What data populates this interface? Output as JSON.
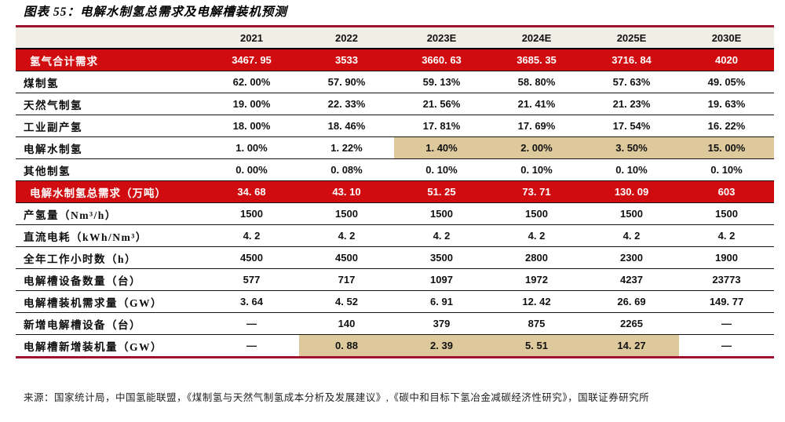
{
  "title": "图表 55：电解水制氢总需求及电解槽装机预测",
  "source": "来源：国家统计局，中国氢能联盟，《煤制氢与天然气制氢成本分析及发展建议》,《碳中和目标下氢冶金减碳经济性研究》，国联证券研究所",
  "colors": {
    "accent_red": "#d10c10",
    "border_maroon": "#9e1430",
    "header_bg": "#f1eee6",
    "highlight_tan": "#ddc99c",
    "row_line": "#141414"
  },
  "chart_data": {
    "type": "table",
    "title": "电解水制氢总需求及电解槽装机预测",
    "columns": [
      "",
      "2021",
      "2022",
      "2023E",
      "2024E",
      "2025E",
      "2030E"
    ],
    "rows": [
      {
        "label": "氢气合计需求",
        "type": "red",
        "values": [
          "3467. 95",
          "3533",
          "3660. 63",
          "3685. 35",
          "3716. 84",
          "4020"
        ]
      },
      {
        "label": "煤制氢",
        "type": "normal",
        "values": [
          "62. 00%",
          "57. 90%",
          "59. 13%",
          "58. 80%",
          "57. 63%",
          "49. 05%"
        ]
      },
      {
        "label": "天然气制氢",
        "type": "normal",
        "values": [
          "19. 00%",
          "22. 33%",
          "21. 56%",
          "21. 41%",
          "21. 23%",
          "19. 63%"
        ]
      },
      {
        "label": "工业副产氢",
        "type": "normal",
        "values": [
          "18. 00%",
          "18. 46%",
          "17. 81%",
          "17. 69%",
          "17. 54%",
          "16. 22%"
        ]
      },
      {
        "label": "电解水制氢",
        "type": "normal",
        "values": [
          "1. 00%",
          "1. 22%",
          "1. 40%",
          "2. 00%",
          "3. 50%",
          "15. 00%"
        ],
        "highlight": [
          2,
          3,
          4,
          5
        ]
      },
      {
        "label": "其他制氢",
        "type": "normal",
        "values": [
          "0. 00%",
          "0. 08%",
          "0. 10%",
          "0. 10%",
          "0. 10%",
          "0. 10%"
        ]
      },
      {
        "label": "电解水制氢总需求（万吨）",
        "type": "red",
        "values": [
          "34. 68",
          "43. 10",
          "51. 25",
          "73. 71",
          "130. 09",
          "603"
        ]
      },
      {
        "label": "产氢量（Nm³/h）",
        "type": "normal",
        "values": [
          "1500",
          "1500",
          "1500",
          "1500",
          "1500",
          "1500"
        ]
      },
      {
        "label": "直流电耗（kWh/Nm³）",
        "type": "normal",
        "values": [
          "4. 2",
          "4. 2",
          "4. 2",
          "4. 2",
          "4. 2",
          "4. 2"
        ]
      },
      {
        "label": "全年工作小时数（h）",
        "type": "normal",
        "values": [
          "4500",
          "4500",
          "3500",
          "2800",
          "2300",
          "1900"
        ]
      },
      {
        "label": "电解槽设备数量（台）",
        "type": "normal",
        "values": [
          "577",
          "717",
          "1097",
          "1972",
          "4237",
          "23773"
        ]
      },
      {
        "label": "电解槽装机需求量（GW）",
        "type": "normal",
        "values": [
          "3. 64",
          "4. 52",
          "6. 91",
          "12. 42",
          "26. 69",
          "149. 77"
        ]
      },
      {
        "label": "新增电解槽设备（台）",
        "type": "normal",
        "values": [
          "—",
          "140",
          "379",
          "875",
          "2265",
          "—"
        ]
      },
      {
        "label": "电解槽新增装机量（GW）",
        "type": "normal",
        "values": [
          "—",
          "0. 88",
          "2. 39",
          "5. 51",
          "14. 27",
          "—"
        ],
        "highlight": [
          1,
          2,
          3,
          4
        ]
      }
    ]
  }
}
